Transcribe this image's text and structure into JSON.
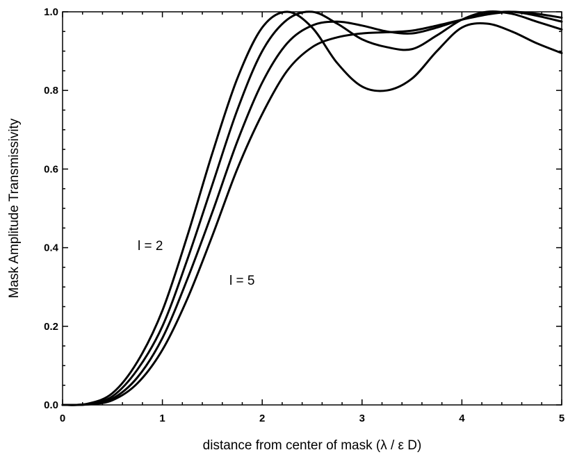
{
  "chart_data": {
    "type": "line",
    "title": "",
    "xlabel": "distance from center of mask (λ / ε D)",
    "ylabel": "Mask Amplitude Transmissivity",
    "xlim": [
      0,
      5
    ],
    "ylim": [
      0,
      1
    ],
    "xticks": [
      "0",
      "1",
      "2",
      "3",
      "4",
      "5"
    ],
    "yticks": [
      "0.0",
      "0.2",
      "0.4",
      "0.6",
      "0.8",
      "1.0"
    ],
    "grid": false,
    "legend": "none",
    "line_color": "#000000",
    "annotations": [
      {
        "text": "l = 2"
      },
      {
        "text": "l = 5"
      }
    ],
    "series": [
      {
        "x": [
          0,
          0.25,
          0.5,
          0.75,
          1.0,
          1.25,
          1.5,
          1.75,
          2.0,
          2.25,
          2.5,
          2.75,
          3.0,
          3.25,
          3.5,
          3.75,
          4.0,
          4.25,
          4.5,
          4.75,
          5.0
        ],
        "values": [
          0.0,
          0.003,
          0.03,
          0.11,
          0.24,
          0.43,
          0.64,
          0.83,
          0.96,
          1.0,
          0.96,
          0.87,
          0.81,
          0.8,
          0.83,
          0.9,
          0.96,
          0.97,
          0.95,
          0.92,
          0.895
        ]
      },
      {
        "x": [
          0,
          0.25,
          0.5,
          0.75,
          1.0,
          1.25,
          1.5,
          1.75,
          2.0,
          2.25,
          2.5,
          2.75,
          3.0,
          3.25,
          3.5,
          3.75,
          4.0,
          4.25,
          4.5,
          4.75,
          5.0
        ],
        "values": [
          0.0,
          0.002,
          0.022,
          0.09,
          0.2,
          0.37,
          0.56,
          0.75,
          0.9,
          0.98,
          1.0,
          0.97,
          0.93,
          0.91,
          0.905,
          0.94,
          0.98,
          1.0,
          0.995,
          0.975,
          0.955
        ]
      },
      {
        "x": [
          0,
          0.25,
          0.5,
          0.75,
          1.0,
          1.25,
          1.5,
          1.75,
          2.0,
          2.25,
          2.5,
          2.75,
          3.0,
          3.25,
          3.5,
          3.75,
          4.0,
          4.25,
          4.5,
          4.75,
          5.0
        ],
        "values": [
          0.0,
          0.0015,
          0.016,
          0.07,
          0.17,
          0.32,
          0.49,
          0.67,
          0.82,
          0.92,
          0.965,
          0.975,
          0.965,
          0.95,
          0.945,
          0.96,
          0.98,
          0.995,
          1.0,
          0.99,
          0.975
        ]
      },
      {
        "x": [
          0,
          0.25,
          0.5,
          0.75,
          1.0,
          1.25,
          1.5,
          1.75,
          2.0,
          2.25,
          2.5,
          2.75,
          3.0,
          3.25,
          3.5,
          3.75,
          4.0,
          4.25,
          4.5,
          4.75,
          5.0
        ],
        "values": [
          0.0,
          0.001,
          0.012,
          0.055,
          0.14,
          0.27,
          0.43,
          0.6,
          0.74,
          0.85,
          0.91,
          0.935,
          0.945,
          0.948,
          0.952,
          0.965,
          0.98,
          0.993,
          1.0,
          0.995,
          0.985
        ]
      }
    ]
  }
}
